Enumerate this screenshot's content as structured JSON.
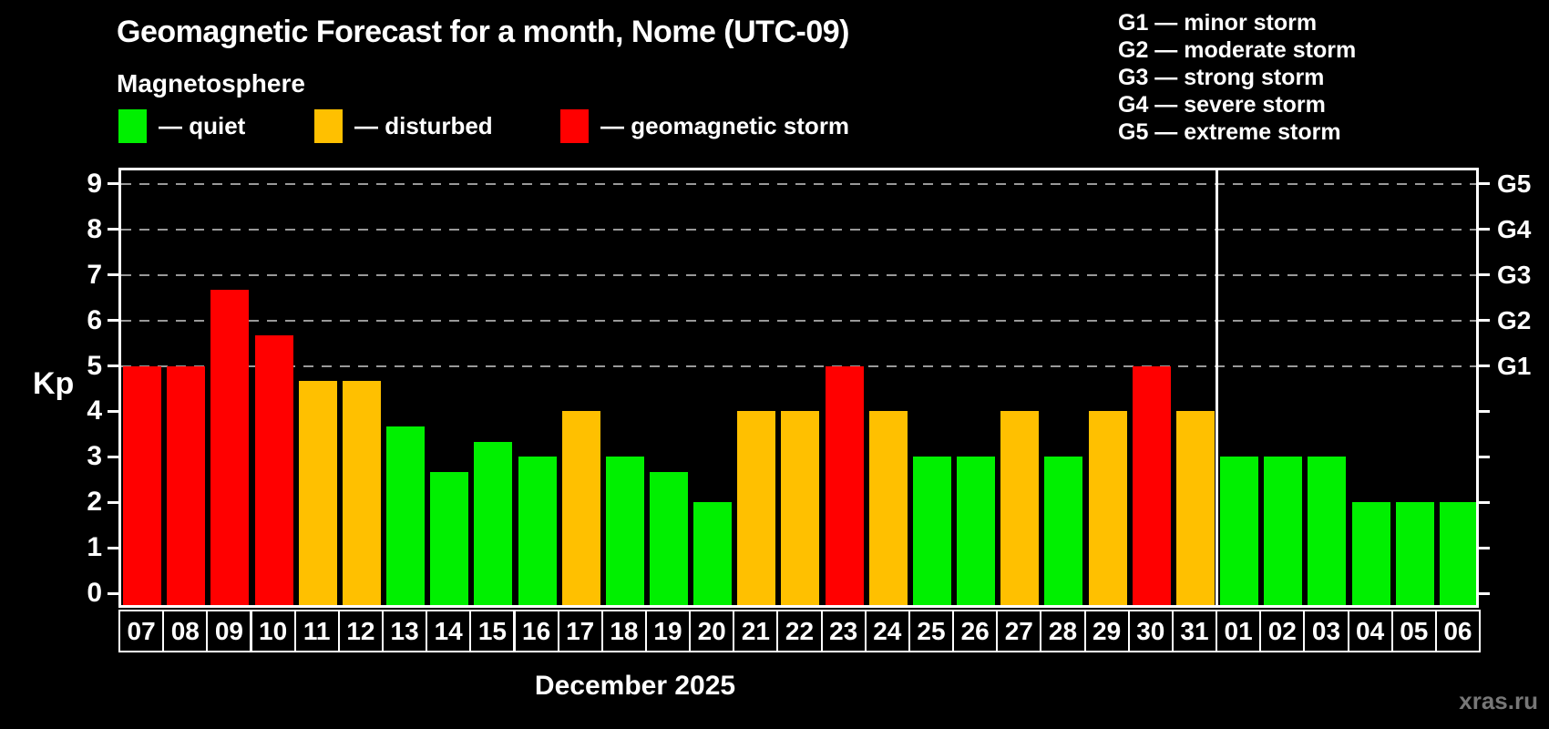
{
  "header": {
    "title": "Geomagnetic Forecast for a month, Nome (UTC-09)",
    "subtitle": "Magnetosphere"
  },
  "legend": {
    "items": [
      {
        "label": "— quiet",
        "state": "quiet"
      },
      {
        "label": "— disturbed",
        "state": "disturbed"
      },
      {
        "label": "— geomagnetic storm",
        "state": "storm"
      }
    ]
  },
  "g_legend": {
    "items": [
      "G1 — minor storm",
      "G2 — moderate storm",
      "G3 — strong storm",
      "G4 — severe storm",
      "G5 — extreme storm"
    ]
  },
  "axes": {
    "left_label": "Kp",
    "left_ticks": [
      0,
      1,
      2,
      3,
      4,
      5,
      6,
      7,
      8,
      9
    ],
    "right_ticks": [
      0,
      1,
      2,
      3,
      4,
      5,
      6,
      7,
      8,
      9
    ],
    "right_labels": [
      {
        "kp": 5,
        "label": "G1"
      },
      {
        "kp": 6,
        "label": "G2"
      },
      {
        "kp": 7,
        "label": "G3"
      },
      {
        "kp": 8,
        "label": "G4"
      },
      {
        "kp": 9,
        "label": "G5"
      }
    ],
    "gridlines_kp": [
      5,
      6,
      7,
      8,
      9
    ]
  },
  "footer": {
    "month_label": "December 2025",
    "watermark": "xras.ru"
  },
  "chart_data": {
    "type": "bar",
    "title": "Geomagnetic Forecast for a month, Nome (UTC-09)",
    "xlabel": "December 2025",
    "ylabel": "Kp",
    "ylim": [
      0,
      9
    ],
    "grid": "dashed horizontal at Kp 5-9",
    "legend_position": "top-left",
    "categories": [
      "07",
      "08",
      "09",
      "10",
      "11",
      "12",
      "13",
      "14",
      "15",
      "16",
      "17",
      "18",
      "19",
      "20",
      "21",
      "22",
      "23",
      "24",
      "25",
      "26",
      "27",
      "28",
      "29",
      "30",
      "31",
      "01",
      "02",
      "03",
      "04",
      "05",
      "06"
    ],
    "values": [
      5,
      5,
      6.67,
      5.67,
      4.67,
      4.67,
      3.67,
      2.67,
      3.33,
      3,
      4,
      3,
      2.67,
      2,
      4,
      4,
      5,
      4,
      3,
      3,
      4,
      3,
      4,
      5,
      4,
      3,
      3,
      3,
      2,
      2,
      2
    ],
    "states": [
      "storm",
      "storm",
      "storm",
      "storm",
      "disturbed",
      "disturbed",
      "quiet",
      "quiet",
      "quiet",
      "quiet",
      "disturbed",
      "quiet",
      "quiet",
      "quiet",
      "disturbed",
      "disturbed",
      "storm",
      "disturbed",
      "quiet",
      "quiet",
      "disturbed",
      "quiet",
      "disturbed",
      "storm",
      "disturbed",
      "quiet",
      "quiet",
      "quiet",
      "quiet",
      "quiet",
      "quiet"
    ],
    "month_boundary_index": 25,
    "colors": {
      "quiet": "#00f000",
      "disturbed": "#ffc000",
      "storm": "#ff0000",
      "grid": "#999999",
      "frame": "#ffffff",
      "watermark": "#777777",
      "background": "#000000"
    }
  }
}
